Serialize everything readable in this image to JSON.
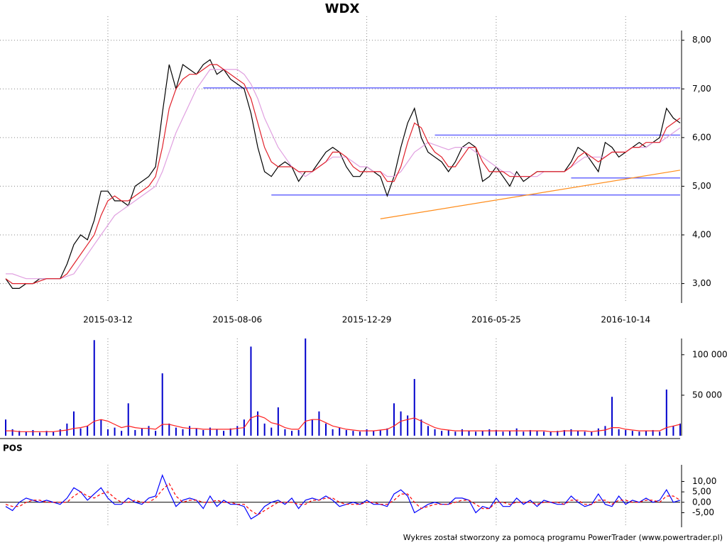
{
  "chart_data": [
    {
      "type": "line",
      "title": "WDX",
      "categories": [
        null,
        null,
        null,
        null,
        null,
        null,
        null,
        null,
        null,
        null,
        null,
        null,
        null,
        null,
        null,
        "2015-03-12",
        null,
        null,
        null,
        null,
        null,
        null,
        null,
        null,
        null,
        null,
        null,
        null,
        null,
        null,
        null,
        null,
        null,
        null,
        "2015-08-06",
        null,
        null,
        null,
        null,
        null,
        null,
        null,
        null,
        null,
        null,
        null,
        null,
        null,
        null,
        null,
        null,
        null,
        null,
        "2015-12-29",
        null,
        null,
        null,
        null,
        null,
        null,
        null,
        null,
        null,
        null,
        null,
        null,
        null,
        null,
        null,
        null,
        null,
        null,
        "2016-05-25",
        null,
        null,
        null,
        null,
        null,
        null,
        null,
        null,
        null,
        null,
        null,
        null,
        null,
        null,
        null,
        null,
        null,
        null,
        "2016-10-14",
        null,
        null,
        null,
        null,
        null,
        null,
        null,
        null
      ],
      "series": [
        {
          "color": "#000000",
          "values": [
            3.1,
            2.9,
            2.9,
            3.0,
            3.0,
            3.1,
            3.1,
            3.1,
            3.1,
            3.4,
            3.8,
            4.0,
            3.9,
            4.3,
            4.9,
            4.9,
            4.7,
            4.7,
            4.6,
            5.0,
            5.1,
            5.2,
            5.4,
            6.5,
            7.5,
            7.0,
            7.5,
            7.4,
            7.3,
            7.5,
            7.6,
            7.3,
            7.4,
            7.2,
            7.1,
            7.0,
            6.5,
            5.8,
            5.3,
            5.2,
            5.4,
            5.5,
            5.4,
            5.1,
            5.3,
            5.3,
            5.5,
            5.7,
            5.8,
            5.7,
            5.4,
            5.2,
            5.2,
            5.4,
            5.3,
            5.2,
            4.8,
            5.2,
            5.8,
            6.3,
            6.6,
            6.0,
            5.7,
            5.6,
            5.5,
            5.3,
            5.5,
            5.8,
            5.9,
            5.8,
            5.1,
            5.2,
            5.4,
            5.2,
            5.0,
            5.3,
            5.1,
            5.2,
            5.3,
            5.3,
            5.3,
            5.3,
            5.3,
            5.5,
            5.8,
            5.7,
            5.5,
            5.3,
            5.9,
            5.8,
            5.6,
            5.7,
            5.8,
            5.9,
            5.8,
            5.9,
            6.0,
            6.6,
            6.4,
            6.3
          ]
        },
        {
          "color": "#e0a0e0",
          "values": [
            3.2,
            3.2,
            3.15,
            3.1,
            3.1,
            3.1,
            3.1,
            3.1,
            3.1,
            3.15,
            3.2,
            3.4,
            3.6,
            3.8,
            4.0,
            4.2,
            4.4,
            4.5,
            4.6,
            4.7,
            4.8,
            4.9,
            5.0,
            5.3,
            5.7,
            6.1,
            6.4,
            6.7,
            7.0,
            7.2,
            7.4,
            7.4,
            7.4,
            7.4,
            7.4,
            7.3,
            7.1,
            6.8,
            6.4,
            6.1,
            5.8,
            5.6,
            5.4,
            5.3,
            5.2,
            5.3,
            5.4,
            5.5,
            5.6,
            5.6,
            5.6,
            5.5,
            5.4,
            5.4,
            5.3,
            5.3,
            5.2,
            5.2,
            5.3,
            5.5,
            5.7,
            5.8,
            5.9,
            5.85,
            5.8,
            5.75,
            5.8,
            5.8,
            5.8,
            5.7,
            5.6,
            5.5,
            5.4,
            5.3,
            5.3,
            5.2,
            5.2,
            5.2,
            5.2,
            5.3,
            5.3,
            5.3,
            5.3,
            5.4,
            5.5,
            5.6,
            5.6,
            5.6,
            5.6,
            5.7,
            5.7,
            5.7,
            5.8,
            5.8,
            5.8,
            5.9,
            5.9,
            6.0,
            6.1,
            6.2
          ]
        },
        {
          "color": "#e0202a",
          "values": [
            3.1,
            3.0,
            3.0,
            3.0,
            3.0,
            3.05,
            3.1,
            3.1,
            3.1,
            3.2,
            3.4,
            3.6,
            3.8,
            4.0,
            4.4,
            4.7,
            4.8,
            4.7,
            4.7,
            4.8,
            4.9,
            5.0,
            5.2,
            5.8,
            6.6,
            7.0,
            7.2,
            7.3,
            7.3,
            7.4,
            7.5,
            7.5,
            7.4,
            7.3,
            7.2,
            7.1,
            6.8,
            6.3,
            5.8,
            5.5,
            5.4,
            5.4,
            5.4,
            5.3,
            5.3,
            5.3,
            5.4,
            5.5,
            5.7,
            5.7,
            5.6,
            5.4,
            5.3,
            5.3,
            5.3,
            5.3,
            5.1,
            5.1,
            5.4,
            5.9,
            6.3,
            6.2,
            5.9,
            5.7,
            5.6,
            5.4,
            5.4,
            5.6,
            5.8,
            5.8,
            5.5,
            5.3,
            5.3,
            5.3,
            5.2,
            5.2,
            5.2,
            5.2,
            5.3,
            5.3,
            5.3,
            5.3,
            5.3,
            5.4,
            5.6,
            5.7,
            5.6,
            5.5,
            5.6,
            5.7,
            5.7,
            5.7,
            5.8,
            5.8,
            5.9,
            5.9,
            5.9,
            6.2,
            6.3,
            6.4
          ]
        }
      ],
      "levels": [
        {
          "value": 7.02,
          "from": 29,
          "color": "#6a6aff"
        },
        {
          "value": 6.05,
          "from": 63,
          "color": "#6a6aff"
        },
        {
          "value": 5.17,
          "from": 83,
          "color": "#6a6aff"
        },
        {
          "value": 4.82,
          "from": 39,
          "color": "#6a6aff"
        }
      ],
      "trend": {
        "from": [
          55,
          4.33
        ],
        "to": [
          99,
          5.33
        ],
        "color": "#ff8c1a"
      },
      "ylim": [
        2.6,
        8.2
      ],
      "yticks": [
        {
          "value": 3,
          "label": "3,00"
        },
        {
          "value": 4,
          "label": "4,00"
        },
        {
          "value": 5,
          "label": "5,00"
        },
        {
          "value": 6,
          "label": "6,00"
        },
        {
          "value": 7,
          "label": "7,00"
        },
        {
          "value": 8,
          "label": "8,00"
        }
      ],
      "grid": true
    },
    {
      "type": "bar",
      "series": [
        {
          "type": "bar",
          "color": "#0000cc",
          "values": [
            20000,
            8000,
            6000,
            5000,
            7000,
            4000,
            6000,
            5000,
            8000,
            15000,
            30000,
            9000,
            12000,
            118000,
            20000,
            8000,
            10000,
            6000,
            40000,
            7000,
            9000,
            12000,
            6000,
            77000,
            15000,
            10000,
            8000,
            12000,
            9000,
            7000,
            10000,
            8000,
            6000,
            9000,
            12000,
            20000,
            110000,
            30000,
            15000,
            10000,
            35000,
            8000,
            6000,
            7000,
            120000,
            20000,
            30000,
            15000,
            8000,
            10000,
            7000,
            6000,
            5000,
            8000,
            6000,
            7000,
            9000,
            40000,
            30000,
            25000,
            70000,
            20000,
            12000,
            8000,
            6000,
            7000,
            5000,
            8000,
            6000,
            5000,
            6000,
            8000,
            7000,
            5000,
            6000,
            9000,
            5000,
            7000,
            6000,
            5000,
            5000,
            6000,
            7000,
            8000,
            6000,
            5000,
            5000,
            9000,
            12000,
            48000,
            8000,
            7000,
            6000,
            5000,
            6000,
            7000,
            5000,
            57000,
            12000,
            15000
          ]
        },
        {
          "type": "line",
          "color": "#ff2020",
          "values": [
            6000,
            6000,
            5000,
            5000,
            5000,
            5000,
            5000,
            5000,
            6000,
            7000,
            9000,
            10000,
            12000,
            18000,
            20000,
            18000,
            14000,
            10000,
            12000,
            10000,
            9000,
            9000,
            8000,
            14000,
            14000,
            12000,
            10000,
            9000,
            9000,
            8000,
            8000,
            8000,
            8000,
            8000,
            9000,
            10000,
            22000,
            25000,
            22000,
            16000,
            14000,
            10000,
            8000,
            8000,
            18000,
            20000,
            20000,
            16000,
            12000,
            10000,
            8000,
            7000,
            6000,
            6000,
            6000,
            7000,
            8000,
            12000,
            18000,
            20000,
            22000,
            18000,
            14000,
            10000,
            8000,
            7000,
            6000,
            6000,
            6000,
            6000,
            6000,
            6000,
            6000,
            6000,
            6000,
            6000,
            6000,
            6000,
            6000,
            6000,
            5000,
            5000,
            6000,
            6000,
            6000,
            6000,
            5000,
            6000,
            7000,
            10000,
            10000,
            8000,
            7000,
            6000,
            6000,
            6000,
            6000,
            10000,
            12000,
            14000
          ]
        }
      ],
      "ylim": [
        0,
        120000
      ],
      "yticks": [
        {
          "value": 50000,
          "label": "50 000"
        },
        {
          "value": 100000,
          "label": "100 000"
        }
      ]
    },
    {
      "type": "line",
      "title": "POS",
      "series": [
        {
          "color": "#0000ff",
          "dash": false,
          "values": [
            -2,
            -4,
            0,
            2,
            1,
            0,
            1,
            0,
            -1,
            2,
            7,
            5,
            1,
            4,
            7,
            2,
            -1,
            -1,
            2,
            0,
            -1,
            2,
            3,
            13,
            5,
            -2,
            1,
            2,
            1,
            -3,
            3,
            -2,
            1,
            -1,
            -1,
            -2,
            -8,
            -6,
            -2,
            0,
            1,
            -1,
            2,
            -3,
            1,
            2,
            1,
            3,
            1,
            -2,
            -1,
            0,
            -1,
            1,
            -1,
            -1,
            -2,
            4,
            6,
            3,
            -5,
            -3,
            -1,
            0,
            -1,
            -1,
            2,
            2,
            1,
            -5,
            -2,
            -3,
            2,
            -2,
            -2,
            2,
            -1,
            1,
            -2,
            1,
            0,
            -1,
            -1,
            3,
            0,
            -2,
            -1,
            4,
            -1,
            -2,
            3,
            -1,
            1,
            0,
            2,
            0,
            1,
            6,
            0,
            1
          ]
        },
        {
          "color": "#ff0000",
          "dash": true,
          "values": [
            -1,
            -2,
            -2,
            0,
            1,
            1,
            0,
            0,
            0,
            0,
            3,
            5,
            3,
            2,
            4,
            5,
            2,
            0,
            0,
            1,
            0,
            0,
            2,
            6,
            9,
            3,
            0,
            1,
            1,
            0,
            0,
            1,
            0,
            0,
            -1,
            -1,
            -4,
            -6,
            -4,
            -2,
            0,
            0,
            0,
            -1,
            -1,
            1,
            1,
            2,
            2,
            0,
            -1,
            -1,
            -1,
            0,
            0,
            -1,
            -1,
            1,
            4,
            4,
            0,
            -3,
            -2,
            -1,
            -1,
            -1,
            0,
            1,
            1,
            -1,
            -3,
            -3,
            0,
            0,
            -1,
            0,
            0,
            0,
            -1,
            0,
            0,
            0,
            -1,
            1,
            1,
            -1,
            -1,
            1,
            1,
            -1,
            1,
            1,
            0,
            0,
            1,
            1,
            0,
            3,
            3,
            1
          ]
        }
      ],
      "zero_line": true,
      "ylim": [
        -12,
        18
      ],
      "yticks": [
        {
          "value": -5,
          "label": "-5,00"
        },
        {
          "value": 0,
          "label": "0,00"
        },
        {
          "value": 5,
          "label": "5,00"
        },
        {
          "value": 10,
          "label": "10,00"
        }
      ]
    }
  ],
  "footer": "Wykres został stworzony za pomocą programu PowerTrader (www.powertrader.pl)"
}
